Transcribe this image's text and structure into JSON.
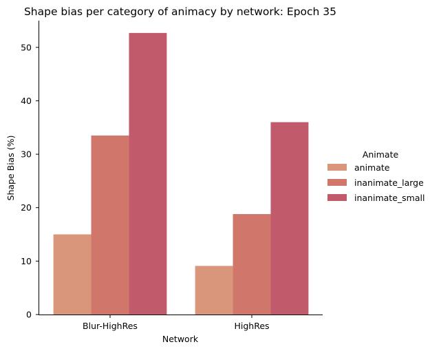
{
  "chart_data": {
    "type": "bar",
    "title": "Shape bias per category of animacy by network: Epoch 35",
    "xlabel": "Network",
    "ylabel": "Shape Bias (%)",
    "categories": [
      "Blur-HighRes",
      "HighRes"
    ],
    "ylim": [
      0,
      55
    ],
    "yticks": [
      0,
      10,
      20,
      30,
      40,
      50
    ],
    "grid": false,
    "legend": {
      "title": "Animate",
      "placement": "right"
    },
    "series": [
      {
        "name": "animate",
        "color": "#d9967b",
        "values": [
          15.0,
          9.1
        ]
      },
      {
        "name": "inanimate_large",
        "color": "#d1766b",
        "values": [
          33.5,
          18.8
        ]
      },
      {
        "name": "inanimate_small",
        "color": "#c15b6b",
        "values": [
          52.7,
          36.0
        ]
      }
    ]
  }
}
